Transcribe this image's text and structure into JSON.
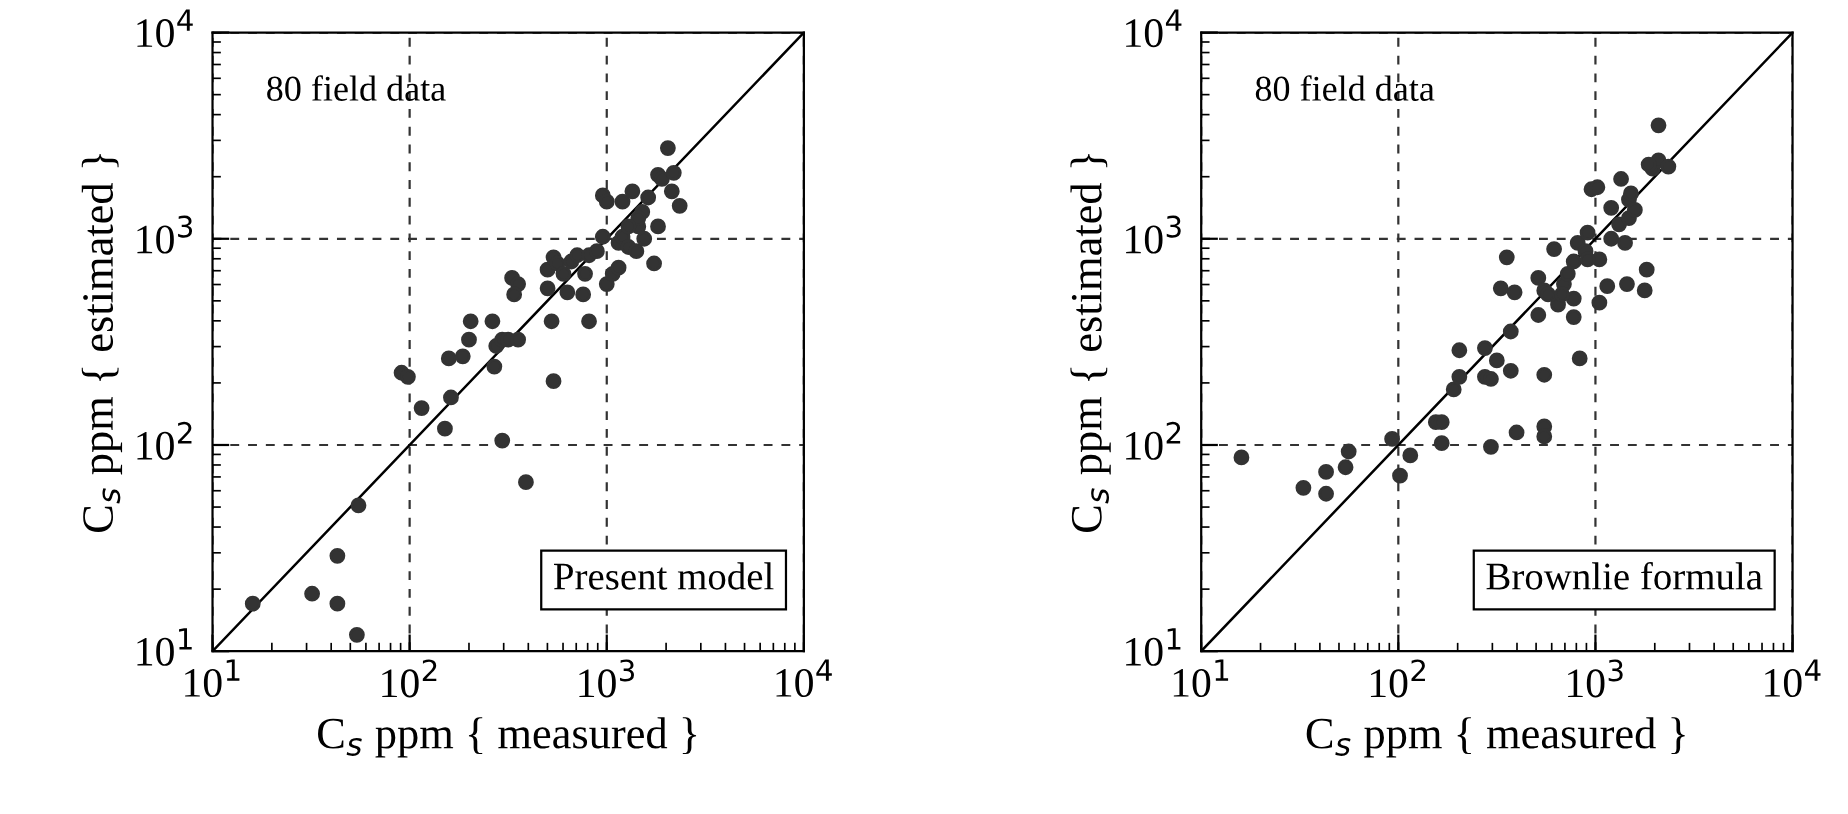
{
  "chart_data": [
    {
      "type": "scatter",
      "xlabel": "C$_{s}$ ppm { measured }",
      "ylabel": "C$_{s}$ ppm { estimated }",
      "annotations": [
        "80 field data",
        "Present model"
      ],
      "log": "xy",
      "grid": true,
      "marker": "circle",
      "xlim": [
        10,
        10000
      ],
      "ylim": [
        10,
        10000
      ],
      "xticks": [
        {
          "value": 10,
          "label": "10$^{1}$"
        },
        {
          "value": 100,
          "label": "10$^{2}$"
        },
        {
          "value": 1000,
          "label": "10$^{3}$"
        },
        {
          "value": 10000,
          "label": "10$^{4}$"
        }
      ],
      "yticks": [
        {
          "value": 10,
          "label": "10$^{1}$"
        },
        {
          "value": 100,
          "label": "10$^{2}$"
        },
        {
          "value": 1000,
          "label": "10$^{3}$"
        },
        {
          "value": 10000,
          "label": "10$^{4}$"
        }
      ],
      "series": [
        {
          "color": "#333333",
          "x": [
            16,
            32,
            43,
            43,
            54,
            55,
            91,
            98,
            115,
            151,
            162,
            158,
            186,
            200,
            204,
            263,
            275,
            269,
            295,
            316,
            355,
            331,
            355,
            339,
            295,
            389,
            537,
            525,
            501,
            501,
            537,
            562,
            603,
            631,
            661,
            708,
            759,
            776,
            813,
            813,
            891,
            955,
            1000,
            1072,
            1148,
            1148,
            1202,
            1288,
            1413,
            1445,
            1514,
            1445,
            1549,
            1622,
            1820,
            1738,
            955,
            1000,
            1202,
            1349,
            1820,
            1905,
            2042,
            2188,
            2138,
            2344,
            1288
          ],
          "values": [
            17,
            19,
            17,
            29,
            12,
            51,
            224,
            214,
            151,
            120,
            170,
            263,
            269,
            324,
            398,
            398,
            302,
            240,
            324,
            324,
            324,
            646,
            603,
            537,
            105,
            66,
            204,
            398,
            575,
            708,
            813,
            759,
            676,
            550,
            776,
            832,
            537,
            676,
            398,
            832,
            871,
            1023,
            603,
            676,
            724,
            955,
            1023,
            912,
            871,
            1148,
            1349,
            1259,
            1000,
            1585,
            1148,
            759,
            1622,
            1514,
            1514,
            1698,
            2042,
            1950,
            2754,
            2089,
            1698,
            1445,
            1148
          ]
        },
        {
          "type": "line",
          "color": "#000000",
          "marker": "none",
          "x": [
            10,
            10000
          ],
          "values": [
            10,
            10000
          ]
        }
      ]
    },
    {
      "type": "scatter",
      "xlabel": "C$_{s}$ ppm { measured }",
      "ylabel": "C$_{s}$ ppm { estimated }",
      "annotations": [
        "80 field data",
        "Brownlie formula"
      ],
      "log": "xy",
      "grid": true,
      "marker": "circle",
      "xlim": [
        10,
        10000
      ],
      "ylim": [
        10,
        10000
      ],
      "xticks": [
        {
          "value": 10,
          "label": "10$^{1}$"
        },
        {
          "value": 100,
          "label": "10$^{2}$"
        },
        {
          "value": 1000,
          "label": "10$^{3}$"
        },
        {
          "value": 10000,
          "label": "10$^{4}$"
        }
      ],
      "yticks": [
        {
          "value": 10,
          "label": "10$^{1}$"
        },
        {
          "value": 100,
          "label": "10$^{2}$"
        },
        {
          "value": 1000,
          "label": "10$^{3}$"
        },
        {
          "value": 10000,
          "label": "10$^{4}$"
        }
      ],
      "series": [
        {
          "color": "#333333",
          "x": [
            16,
            33,
            43,
            43,
            54,
            56,
            93,
            102,
            115,
            155,
            166,
            166,
            191,
            204,
            204,
            275,
            275,
            295,
            295,
            316,
            372,
            372,
            331,
            355,
            389,
            398,
            513,
            513,
            550,
            550,
            550,
            550,
            575,
            617,
            646,
            692,
            724,
            776,
            776,
            776,
            813,
            832,
            891,
            912,
            955,
            1023,
            1047,
            1047,
            1148,
            1202,
            1202,
            1318,
            1349,
            1413,
            1479,
            1479,
            1514,
            1585,
            1445,
            1778,
            1820,
            1950,
            2089,
            2089,
            2344,
            1862,
            676,
            912
          ],
          "values": [
            87,
            62,
            74,
            58,
            78,
            93,
            107,
            71,
            89,
            129,
            129,
            102,
            186,
            214,
            288,
            295,
            214,
            209,
            98,
            257,
            355,
            229,
            575,
            813,
            550,
            115,
            427,
            646,
            562,
            219,
            123,
            110,
            537,
            891,
            479,
            603,
            676,
            776,
            513,
            417,
            955,
            263,
            871,
            1072,
            1738,
            1778,
            490,
            794,
            589,
            1000,
            1413,
            1175,
            1950,
            955,
            1259,
            1549,
            1660,
            1380,
            603,
            562,
            708,
            2188,
            3548,
            2399,
            2239,
            2291,
            537,
            794
          ]
        },
        {
          "type": "line",
          "color": "#000000",
          "marker": "none",
          "x": [
            10,
            10000
          ],
          "values": [
            10,
            10000
          ]
        }
      ]
    }
  ]
}
